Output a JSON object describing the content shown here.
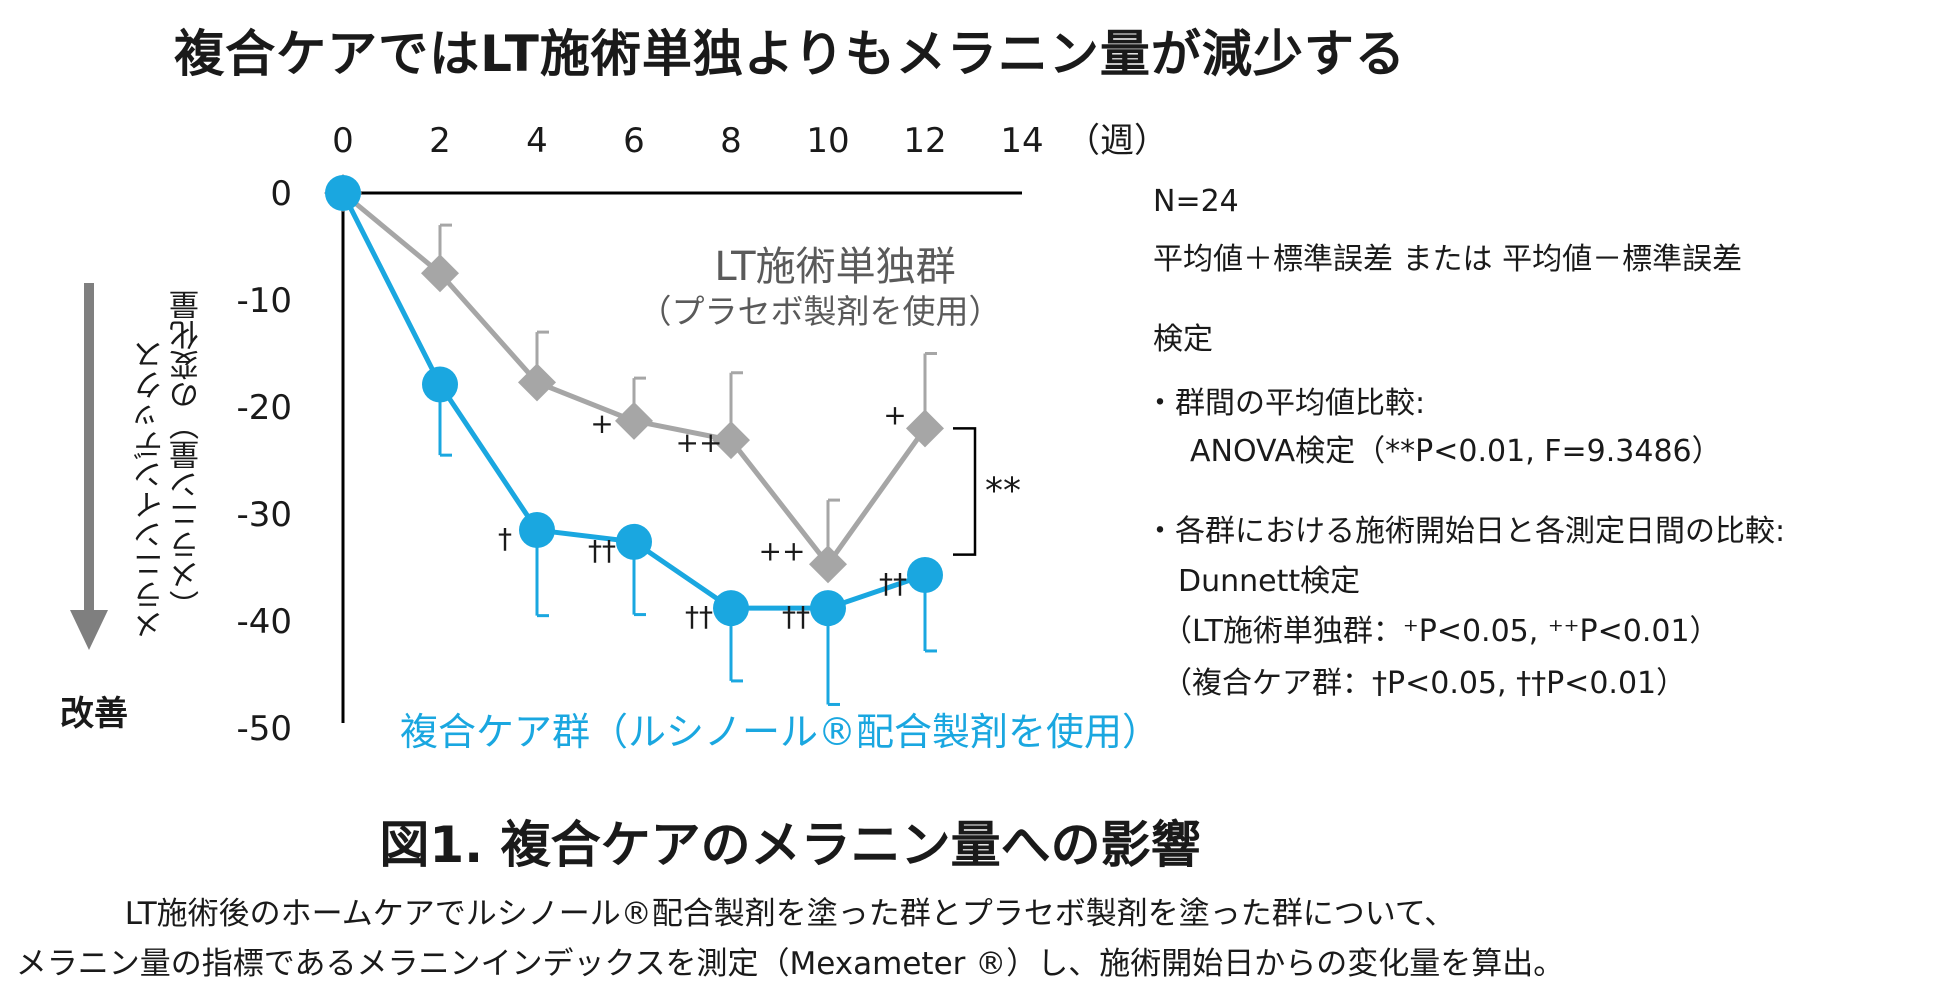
{
  "title": "複合ケアではLT施術単独よりもメラニン量が減少する",
  "chart_data": {
    "type": "line",
    "x": [
      0,
      2,
      4,
      6,
      8,
      10,
      12
    ],
    "x_ticks": [
      "0",
      "2",
      "4",
      "6",
      "8",
      "10",
      "12",
      "14"
    ],
    "x_unit": "（週）",
    "y_ticks": [
      "0",
      "-10",
      "-20",
      "-30",
      "-40",
      "-50"
    ],
    "ylim": [
      -50,
      0
    ],
    "xlim": [
      0,
      14
    ],
    "ylabel_line1": "メラニンインデックス",
    "ylabel_line2": "（メラニン量）の変化量",
    "improve_label": "改善",
    "series": [
      {
        "name": "LT施術単独群",
        "subname": "（プラセボ製剤を使用）",
        "color": "#a6a6a6",
        "marker": "diamond",
        "values": [
          0,
          -7.5,
          -17.7,
          -21.3,
          -23.1,
          -34.7,
          -22.0
        ],
        "error": [
          0,
          4.5,
          4.7,
          4.0,
          6.3,
          6.0,
          7.0
        ],
        "error_direction": "up",
        "annotations": [
          "",
          "",
          "",
          "+",
          "++",
          "++",
          "+"
        ]
      },
      {
        "name": "複合ケア群（ルシノール®配合製剤を使用）",
        "color": "#1aa7e0",
        "marker": "circle",
        "values": [
          0,
          -17.9,
          -31.5,
          -32.6,
          -38.8,
          -38.8,
          -35.7
        ],
        "error": [
          0,
          6.6,
          8.0,
          6.8,
          6.8,
          9.0,
          7.1
        ],
        "error_direction": "down",
        "annotations": [
          "",
          "",
          "†",
          "††",
          "††",
          "††",
          "††"
        ]
      }
    ],
    "bracket_label": "**"
  },
  "side_notes": {
    "n": "N=24",
    "mean_note": "平均値＋標準誤差 または 平均値－標準誤差",
    "test_heading": "検定",
    "anova_heading": "・群間の平均値比較:",
    "anova_detail": "ANOVA検定（**P<0.01, F=9.3486）",
    "dunnett_heading": "・各群における施術開始日と各測定日間の比較:",
    "dunnett_detail": "Dunnett検定",
    "lt_group_detail": "（LT施術単独群：⁺P<0.05, ⁺⁺P<0.01）",
    "combo_group_detail": "（複合ケア群：†P<0.05, ††P<0.01）"
  },
  "figure_title": "図1. 複合ケアのメラニン量への影響",
  "caption_line1": "LT施術後のホームケアでルシノール®配合製剤を塗った群とプラセボ製剤を塗った群について、",
  "caption_line2": "メラニン量の指標であるメラニンインデックスを測定（Mexameter ®）し、施術開始日からの変化量を算出。"
}
